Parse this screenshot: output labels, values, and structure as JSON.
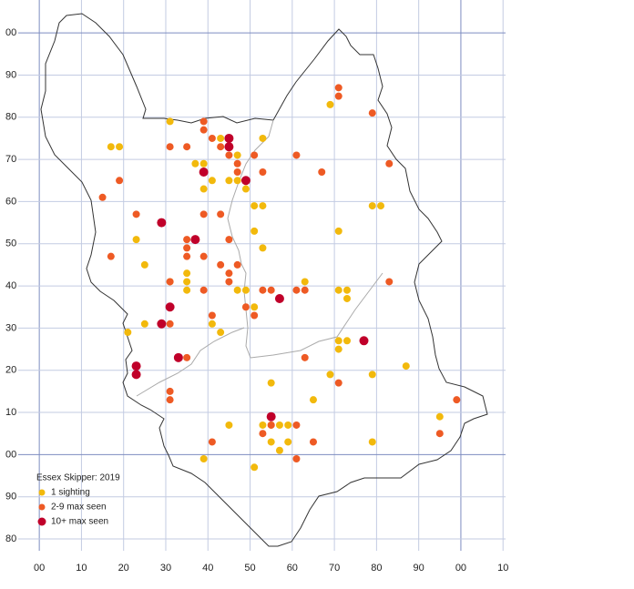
{
  "chart_data": {
    "type": "scatter",
    "title": "Essex Skipper:  2019",
    "xlim": [
      -5,
      110.6
    ],
    "ylim": [
      -22.8,
      107.8
    ],
    "xticks": [
      {
        "value": 0,
        "label": "00"
      },
      10,
      20,
      30,
      40,
      50,
      60,
      70,
      80,
      90,
      {
        "value": 100,
        "label": "00"
      },
      {
        "value": 110,
        "label": "10"
      }
    ],
    "yticks": [
      {
        "value": 100,
        "label": "00"
      },
      90,
      80,
      70,
      60,
      50,
      40,
      30,
      20,
      10,
      {
        "value": 0,
        "label": "00"
      },
      {
        "value": -10,
        "label": "90"
      },
      {
        "value": -20,
        "label": "80"
      }
    ],
    "grid": true,
    "series": [
      {
        "name": "1 sighting",
        "color": "#f2b90c",
        "x": [
          31,
          17,
          19,
          43,
          53,
          37,
          39,
          47,
          41,
          45,
          47,
          39,
          49,
          51,
          53,
          79,
          81,
          51,
          53,
          71,
          23,
          25,
          31,
          35,
          35,
          35,
          47,
          49,
          63,
          71,
          73,
          73,
          51,
          41,
          25,
          21,
          43,
          71,
          71,
          73,
          79,
          69,
          87,
          55,
          65,
          45,
          53,
          55,
          57,
          59,
          55,
          59,
          57,
          79,
          95,
          39,
          51,
          69
        ],
        "values": [
          79,
          73,
          73,
          75,
          75,
          69,
          69,
          71,
          65,
          65,
          65,
          63,
          63,
          59,
          59,
          59,
          59,
          53,
          49,
          53,
          51,
          45,
          41,
          43,
          41,
          39,
          39,
          39,
          41,
          39,
          39,
          37,
          35,
          31,
          31,
          29,
          29,
          27,
          25,
          27,
          19,
          19,
          21,
          17,
          13,
          7,
          7,
          7,
          7,
          7,
          3,
          3,
          1,
          3,
          9,
          -1,
          -3,
          83
        ]
      },
      {
        "name": "2-9 max seen",
        "color": "#ee5a24",
        "x": [
          71,
          71,
          79,
          39,
          39,
          31,
          35,
          41,
          43,
          45,
          51,
          61,
          83,
          67,
          47,
          47,
          53,
          19,
          15,
          23,
          39,
          43,
          35,
          35,
          35,
          45,
          39,
          43,
          47,
          45,
          45,
          17,
          31,
          39,
          53,
          55,
          61,
          63,
          83,
          49,
          51,
          41,
          31,
          35,
          63,
          71,
          31,
          31,
          99,
          55,
          53,
          61,
          41,
          65,
          61,
          95
        ],
        "values": [
          87,
          85,
          81,
          79,
          77,
          73,
          73,
          75,
          73,
          71,
          71,
          71,
          69,
          67,
          69,
          67,
          67,
          65,
          61,
          57,
          57,
          57,
          51,
          49,
          47,
          51,
          47,
          45,
          45,
          43,
          41,
          47,
          41,
          39,
          39,
          39,
          39,
          39,
          41,
          35,
          33,
          33,
          31,
          23,
          23,
          17,
          15,
          13,
          13,
          7,
          5,
          7,
          3,
          3,
          -1,
          5
        ]
      },
      {
        "name": "10+ max seen",
        "color": "#c0002a",
        "x": [
          45,
          45,
          39,
          49,
          29,
          37,
          31,
          57,
          29,
          33,
          23,
          23,
          55,
          77
        ],
        "values": [
          75,
          73,
          67,
          65,
          55,
          51,
          35,
          37,
          31,
          23,
          21,
          19,
          9,
          27
        ]
      }
    ]
  }
}
